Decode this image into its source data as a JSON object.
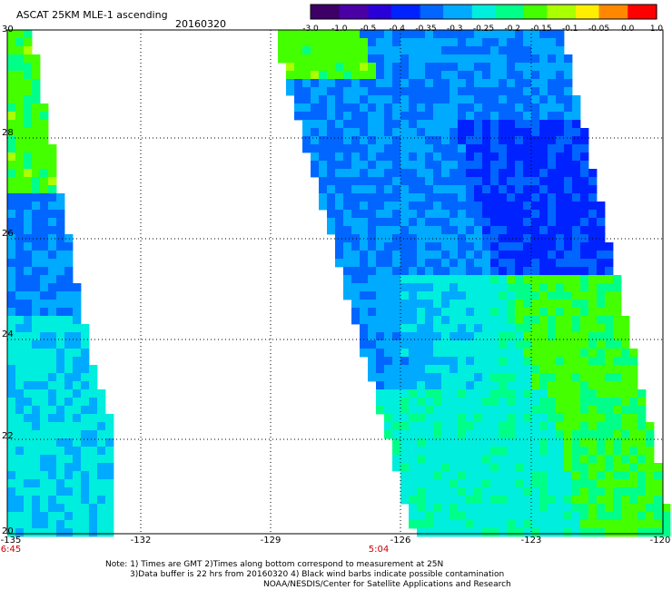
{
  "title": "ASCAT 25KM MLE-1 ascending",
  "date": "20160320",
  "colorbar": {
    "ticks": [
      "-3.0",
      "-1.0",
      "-0.5",
      "-0.4",
      "-0.35",
      "-0.3",
      "-0.25",
      "-0.2",
      "-0.15",
      "-0.1",
      "-0.05",
      "0.0",
      "1.0"
    ],
    "colors": [
      "#3d0066",
      "#4b00a6",
      "#2a00d8",
      "#0022ff",
      "#0066ff",
      "#00aaff",
      "#00eedd",
      "#00ff88",
      "#44ff00",
      "#aaff00",
      "#ffee00",
      "#ff8800",
      "#ff0000"
    ]
  },
  "axes": {
    "x_ticks": [
      "-135",
      "-132",
      "-129",
      "-126",
      "-123",
      "-120"
    ],
    "y_ticks": [
      "30",
      "28",
      "26",
      "24",
      "22",
      "20"
    ],
    "lon_range": [
      -135,
      -120
    ],
    "lat_range": [
      20,
      30
    ]
  },
  "times": [
    "6:45",
    "5:04"
  ],
  "notes": [
    "Note: 1) Times are GMT 2)Times along bottom correspond to measurement at 25N",
    "3)Data buffer is 22 hrs from 20160320 4) Black wind barbs indicate possible contamination",
    "NOAA/NESDIS/Center for Satellite Applications and Research"
  ]
}
